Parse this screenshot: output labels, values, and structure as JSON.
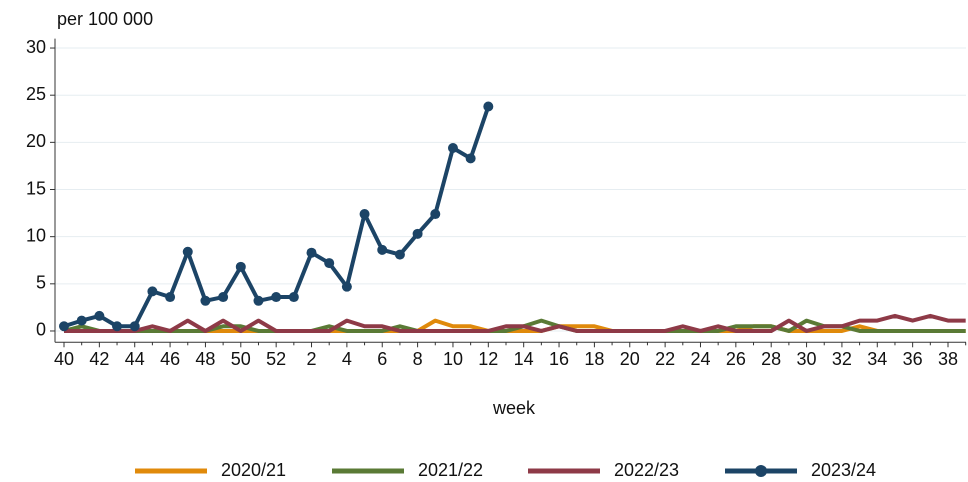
{
  "chart_data": {
    "type": "line",
    "ylabel": "per 100 000",
    "xlabel": "week",
    "categories": [
      "40",
      null,
      "42",
      null,
      "44",
      null,
      "46",
      null,
      "48",
      null,
      "50",
      null,
      "52",
      null,
      "2",
      null,
      "4",
      null,
      "6",
      null,
      "8",
      null,
      "10",
      null,
      "12",
      null,
      "14",
      null,
      "16",
      null,
      "18",
      null,
      "20",
      null,
      "22",
      null,
      "24",
      null,
      "26",
      null,
      "28",
      null,
      "30",
      null,
      "32",
      null,
      "34",
      null,
      "36",
      null,
      "38",
      null
    ],
    "ylim": [
      -1.2,
      31
    ],
    "yticks": [
      0,
      5,
      10,
      15,
      20,
      25,
      30
    ],
    "grid": true,
    "legend": "bottom",
    "series": [
      {
        "name": "2020/21",
        "color": "#e08a0b",
        "marker": false,
        "values": [
          0,
          0,
          0,
          0,
          0,
          0,
          0,
          0,
          0,
          0,
          0,
          0,
          0,
          0,
          0,
          0,
          0,
          0,
          0,
          0,
          0,
          1.1,
          0.5,
          0.5,
          0,
          0,
          0,
          0,
          0.5,
          0.5,
          0.5,
          0,
          0,
          0,
          0,
          0,
          0,
          0,
          0,
          0.5,
          0.5,
          0,
          0,
          0,
          0,
          0.5,
          0,
          0,
          0,
          0,
          0,
          0
        ]
      },
      {
        "name": "2021/22",
        "color": "#5a7a35",
        "marker": false,
        "values": [
          0,
          0.5,
          0,
          0,
          0,
          0,
          0,
          0,
          0,
          0.5,
          0.5,
          0,
          0,
          0,
          0,
          0.5,
          0,
          0,
          0,
          0.5,
          0,
          0,
          0,
          0,
          0,
          0,
          0.5,
          1.1,
          0.5,
          0,
          0,
          0,
          0,
          0,
          0,
          0,
          0,
          0,
          0.5,
          0.5,
          0.5,
          0,
          1.1,
          0.5,
          0.5,
          0,
          0,
          0,
          0,
          0,
          0,
          0
        ]
      },
      {
        "name": "2022/23",
        "color": "#8e3a47",
        "marker": false,
        "values": [
          0,
          0,
          0,
          0,
          0,
          0.5,
          0,
          1.1,
          0,
          1.1,
          0,
          1.1,
          0,
          0,
          0,
          0,
          1.1,
          0.5,
          0.5,
          0,
          0,
          0,
          0,
          0,
          0,
          0.5,
          0.5,
          0,
          0.5,
          0,
          0,
          0,
          0,
          0,
          0,
          0.5,
          0,
          0.5,
          0,
          0,
          0,
          1.1,
          0,
          0.5,
          0.5,
          1.1,
          1.1,
          1.6,
          1.1,
          1.6,
          1.1,
          1.1
        ]
      },
      {
        "name": "2023/24",
        "color": "#1c4466",
        "marker": true,
        "values": [
          0.5,
          1.1,
          1.6,
          0.5,
          0.5,
          4.2,
          3.6,
          8.4,
          3.2,
          3.6,
          6.8,
          3.2,
          3.6,
          3.6,
          8.3,
          7.2,
          4.7,
          12.4,
          8.6,
          8.1,
          10.3,
          12.4,
          19.4,
          18.3,
          23.8,
          null,
          null,
          null,
          null,
          null,
          null,
          null,
          null,
          null,
          null,
          null,
          null,
          null,
          null,
          null,
          null,
          null,
          null,
          null,
          null,
          null,
          null,
          null,
          null,
          null,
          null,
          null
        ]
      }
    ]
  }
}
